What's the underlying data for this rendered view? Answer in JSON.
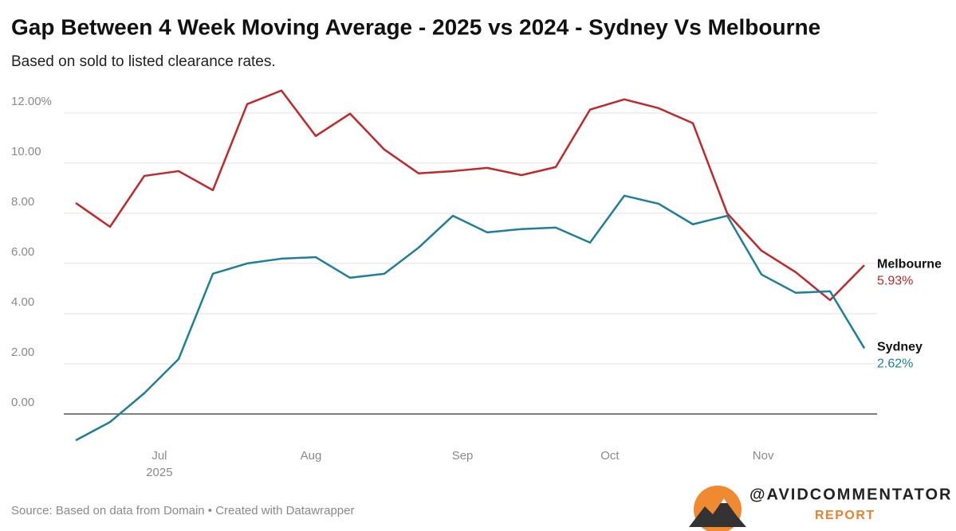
{
  "chart_data": {
    "type": "line",
    "title": "Gap Between 4 Week Moving Average - 2025 vs 2024 - Sydney Vs Melbourne",
    "subtitle": "Based on sold to listed clearance rates.",
    "source": "Source: Based on data from Domain • Created with Datawrapper",
    "brand": "@AVIDCOMMENTATOR",
    "brand_sub": "REPORT",
    "categories": [
      null,
      null,
      null,
      null,
      null,
      null,
      null,
      null,
      null,
      null,
      null,
      null,
      null,
      null,
      null,
      null,
      null,
      null,
      null,
      null,
      null,
      null,
      null,
      null
    ],
    "xticks": [
      {
        "value": 2.44,
        "label": "Jul"
      },
      {
        "value": 6.86,
        "label": "Aug"
      },
      {
        "value": 11.28,
        "label": "Sep"
      },
      {
        "value": 15.58,
        "label": "Oct"
      },
      {
        "value": 20.05,
        "label": "Nov"
      }
    ],
    "x_sublabel": "2025",
    "ylim": [
      -1.3,
      13.2
    ],
    "yticks": [
      {
        "value": 0,
        "label": "0.00"
      },
      {
        "value": 2,
        "label": "2.00"
      },
      {
        "value": 4,
        "label": "4.00"
      },
      {
        "value": 6,
        "label": "6.00"
      },
      {
        "value": 8,
        "label": "8.00"
      },
      {
        "value": 10,
        "label": "10.00"
      },
      {
        "value": 12,
        "label": "12.00%"
      }
    ],
    "grid": true,
    "series": [
      {
        "name": "Melbourne",
        "color": "#c0282a",
        "values": [
          8.41,
          7.46,
          9.49,
          9.68,
          8.92,
          12.35,
          12.89,
          11.08,
          11.97,
          10.54,
          9.59,
          9.68,
          9.81,
          9.52,
          9.84,
          12.13,
          12.54,
          12.19,
          11.59,
          8.0,
          6.51,
          5.65,
          4.54,
          5.93
        ],
        "end_label": "5.93%"
      },
      {
        "name": "Sydney",
        "color": "#1d7f9c",
        "values": [
          -1.05,
          -0.32,
          0.83,
          2.19,
          5.59,
          6.0,
          6.19,
          6.25,
          5.43,
          5.59,
          6.63,
          7.9,
          7.24,
          7.37,
          7.43,
          6.83,
          8.7,
          8.38,
          7.56,
          7.9,
          5.56,
          4.83,
          4.89,
          2.62
        ],
        "end_label": "2.62%"
      }
    ]
  }
}
